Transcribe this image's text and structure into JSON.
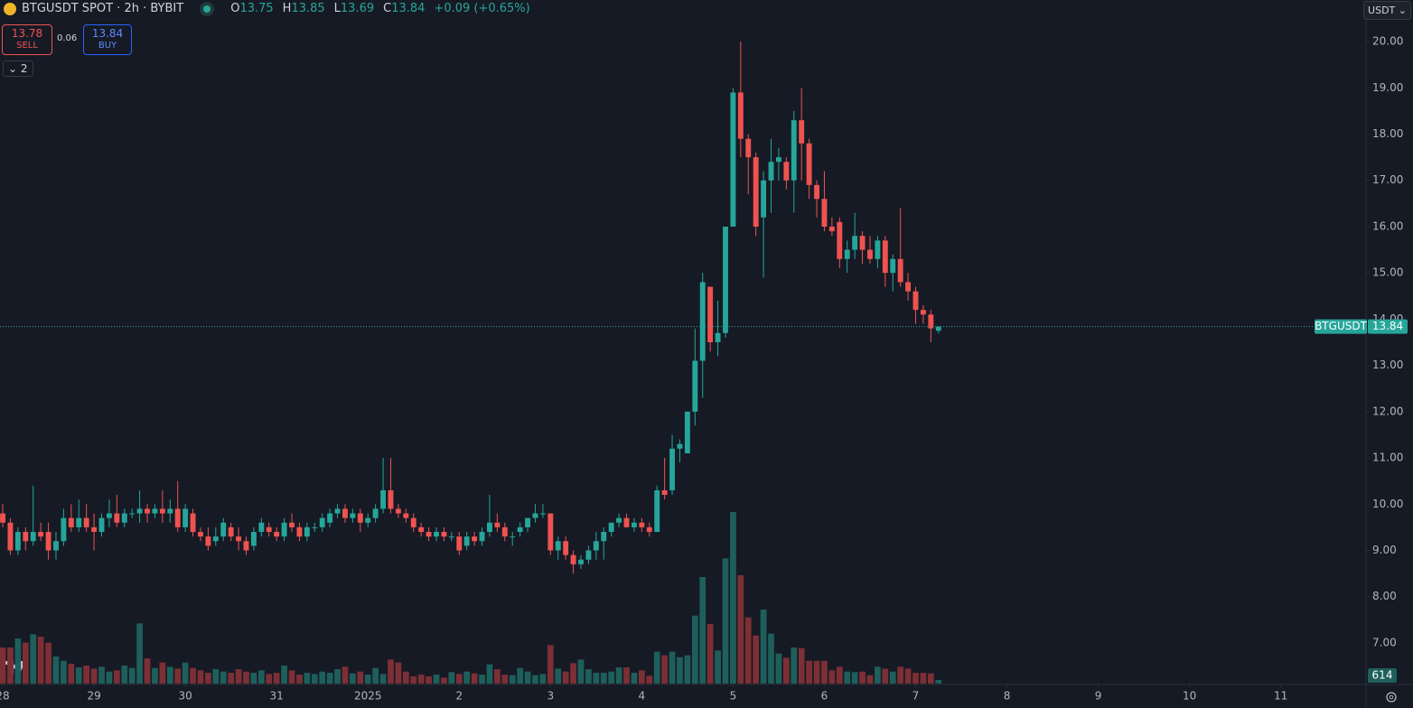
{
  "header": {
    "symbol": "BTGUSDT SPOT · 2h · BYBIT",
    "ohlc": [
      {
        "label": "O",
        "value": "13.75"
      },
      {
        "label": "H",
        "value": "13.85"
      },
      {
        "label": "L",
        "value": "13.69"
      },
      {
        "label": "C",
        "value": "13.84"
      }
    ],
    "change": "+0.09 (+0.65%)",
    "sell": {
      "price": "13.78",
      "label": "SELL"
    },
    "spread": "0.06",
    "buy": {
      "price": "13.84",
      "label": "BUY"
    },
    "indicators": "2",
    "currency": "USDT"
  },
  "chart_data": {
    "type": "candlestick",
    "up_color": "#26a69a",
    "down_color": "#ef5350",
    "up_volume_color": "#1e5f5b",
    "down_volume_color": "#7c2f35",
    "xlim": [
      -0.36,
      179.2
    ],
    "xticks": [
      {
        "value": 0,
        "label": "28"
      },
      {
        "value": 12,
        "label": "29"
      },
      {
        "value": 24,
        "label": "30"
      },
      {
        "value": 36,
        "label": "31"
      },
      {
        "value": 48,
        "label": "2025"
      },
      {
        "value": 60,
        "label": "2"
      },
      {
        "value": 72,
        "label": "3"
      },
      {
        "value": 84,
        "label": "4"
      },
      {
        "value": 96,
        "label": "5"
      },
      {
        "value": 108,
        "label": "6"
      },
      {
        "value": 120,
        "label": "7"
      },
      {
        "value": 132,
        "label": "8"
      },
      {
        "value": 144,
        "label": "9"
      },
      {
        "value": 156,
        "label": "10"
      },
      {
        "value": 168,
        "label": "11"
      }
    ],
    "ylim": [
      6.12,
      20.9
    ],
    "yticks": [
      {
        "value": 7,
        "label": "7.00"
      },
      {
        "value": 8,
        "label": "8.00"
      },
      {
        "value": 9,
        "label": "9.00"
      },
      {
        "value": 10,
        "label": "10.00"
      },
      {
        "value": 11,
        "label": "11.00"
      },
      {
        "value": 12,
        "label": "12.00"
      },
      {
        "value": 13,
        "label": "13.00"
      },
      {
        "value": 14,
        "label": "14.00"
      },
      {
        "value": 15,
        "label": "15.00"
      },
      {
        "value": 16,
        "label": "16.00"
      },
      {
        "value": 17,
        "label": "17.00"
      },
      {
        "value": 18,
        "label": "18.00"
      },
      {
        "value": 19,
        "label": "19.00"
      },
      {
        "value": 20,
        "label": "20.00"
      }
    ],
    "volume_lim": [
      0,
      33000
    ],
    "last_price": {
      "name": "BTGUSDT",
      "value": 13.84
    },
    "open": [
      9.8,
      9.6,
      9.0,
      9.4,
      9.2,
      9.4,
      9.4,
      9.0,
      9.2,
      9.7,
      9.5,
      9.7,
      9.5,
      9.4,
      9.7,
      9.8,
      9.6,
      9.8,
      9.8,
      9.9,
      9.8,
      9.9,
      9.8,
      9.9,
      9.5,
      9.8,
      9.4,
      9.3,
      9.2,
      9.3,
      9.5,
      9.3,
      9.2,
      9.1,
      9.4,
      9.5,
      9.4,
      9.3,
      9.6,
      9.5,
      9.3,
      9.5,
      9.5,
      9.6,
      9.8,
      9.9,
      9.7,
      9.8,
      9.6,
      9.7,
      9.9,
      10.3,
      9.9,
      9.8,
      9.7,
      9.5,
      9.4,
      9.3,
      9.4,
      9.3,
      9.3,
      9.1,
      9.3,
      9.2,
      9.4,
      9.6,
      9.5,
      9.3,
      9.4,
      9.5,
      9.7,
      9.8,
      9.8,
      9.0,
      9.2,
      8.9,
      8.7,
      8.8,
      9.0,
      9.2,
      9.4,
      9.6,
      9.7,
      9.5,
      9.6,
      9.5,
      9.4,
      10.3,
      10.3,
      11.2,
      11.1,
      12.0,
      13.1,
      14.7,
      13.5,
      13.7,
      16.0,
      18.9,
      17.9,
      17.5,
      16.2,
      17.0,
      17.4,
      17.4,
      17.0,
      18.3,
      17.8,
      16.9,
      16.6,
      16.0,
      16.1,
      15.3,
      15.5,
      15.8,
      15.5,
      15.3,
      15.7,
      15.0,
      15.3,
      14.8,
      14.6,
      14.2,
      14.1,
      13.75
    ],
    "high": [
      10.0,
      9.7,
      9.5,
      9.5,
      10.4,
      9.6,
      9.6,
      9.4,
      9.9,
      10.0,
      10.1,
      10.0,
      9.8,
      9.8,
      10.1,
      10.2,
      9.9,
      9.9,
      10.3,
      10.0,
      10.0,
      10.3,
      10.1,
      10.5,
      10.0,
      9.9,
      9.5,
      9.5,
      9.5,
      9.7,
      9.6,
      9.5,
      9.3,
      9.5,
      9.7,
      9.6,
      9.5,
      9.7,
      9.8,
      9.6,
      9.6,
      9.6,
      9.8,
      9.9,
      10.0,
      10.0,
      9.9,
      9.9,
      9.8,
      10.0,
      11.0,
      11.0,
      10.0,
      9.9,
      9.8,
      9.6,
      9.5,
      9.5,
      9.5,
      9.4,
      9.4,
      9.4,
      9.4,
      9.5,
      10.2,
      9.8,
      9.6,
      9.4,
      9.6,
      9.7,
      10.0,
      10.0,
      9.8,
      9.3,
      9.3,
      9.0,
      8.9,
      9.1,
      9.4,
      9.5,
      9.6,
      9.8,
      9.8,
      9.7,
      9.7,
      9.6,
      10.4,
      11.0,
      11.5,
      11.4,
      12.0,
      13.8,
      15.0,
      14.7,
      14.4,
      16.0,
      19.0,
      20.0,
      18.0,
      17.6,
      17.2,
      17.9,
      17.7,
      17.5,
      18.5,
      19.0,
      17.9,
      17.0,
      17.2,
      16.2,
      16.2,
      15.7,
      16.3,
      15.9,
      15.8,
      15.8,
      15.8,
      15.4,
      16.4,
      15.0,
      14.7,
      14.3,
      14.2,
      13.85
    ],
    "low": [
      9.5,
      8.9,
      8.9,
      9.0,
      9.1,
      9.2,
      8.8,
      8.8,
      9.1,
      9.4,
      9.4,
      9.4,
      9.0,
      9.3,
      9.5,
      9.5,
      9.5,
      9.7,
      9.6,
      9.6,
      9.7,
      9.6,
      9.6,
      9.4,
      9.4,
      9.3,
      9.2,
      9.0,
      9.1,
      9.2,
      9.2,
      9.0,
      8.9,
      9.0,
      9.3,
      9.3,
      9.2,
      9.2,
      9.4,
      9.2,
      9.2,
      9.4,
      9.4,
      9.5,
      9.7,
      9.6,
      9.6,
      9.4,
      9.5,
      9.6,
      9.8,
      9.8,
      9.7,
      9.6,
      9.4,
      9.3,
      9.2,
      9.2,
      9.2,
      9.2,
      8.9,
      9.0,
      9.1,
      9.1,
      9.3,
      9.4,
      9.2,
      9.1,
      9.3,
      9.4,
      9.6,
      9.7,
      8.9,
      8.8,
      8.8,
      8.5,
      8.6,
      8.7,
      8.8,
      8.8,
      9.3,
      9.5,
      9.5,
      9.4,
      9.4,
      9.3,
      9.4,
      10.1,
      10.2,
      10.9,
      11.1,
      11.7,
      12.3,
      13.3,
      13.2,
      13.6,
      16.0,
      17.5,
      16.7,
      15.8,
      14.9,
      16.3,
      17.0,
      16.8,
      16.3,
      17.0,
      16.6,
      16.2,
      15.9,
      15.8,
      15.1,
      15.0,
      15.3,
      15.2,
      15.2,
      15.1,
      14.7,
      14.6,
      14.7,
      14.4,
      13.9,
      13.9,
      13.5,
      13.69
    ],
    "close": [
      9.6,
      9.0,
      9.4,
      9.2,
      9.4,
      9.3,
      9.0,
      9.2,
      9.7,
      9.5,
      9.7,
      9.5,
      9.4,
      9.7,
      9.8,
      9.6,
      9.8,
      9.8,
      9.9,
      9.8,
      9.9,
      9.8,
      9.9,
      9.5,
      9.9,
      9.4,
      9.3,
      9.1,
      9.3,
      9.6,
      9.3,
      9.2,
      9.0,
      9.4,
      9.6,
      9.4,
      9.3,
      9.6,
      9.5,
      9.3,
      9.5,
      9.5,
      9.7,
      9.8,
      9.9,
      9.7,
      9.8,
      9.6,
      9.7,
      9.9,
      10.3,
      9.9,
      9.8,
      9.7,
      9.5,
      9.4,
      9.3,
      9.4,
      9.3,
      9.3,
      9.0,
      9.3,
      9.2,
      9.4,
      9.6,
      9.5,
      9.3,
      9.3,
      9.5,
      9.7,
      9.8,
      9.8,
      9.0,
      9.2,
      8.9,
      8.7,
      8.8,
      9.0,
      9.2,
      9.4,
      9.6,
      9.7,
      9.5,
      9.6,
      9.5,
      9.4,
      10.3,
      10.2,
      11.2,
      11.3,
      12.0,
      13.1,
      14.8,
      13.5,
      13.7,
      16.0,
      18.9,
      17.9,
      17.5,
      16.0,
      17.0,
      17.4,
      17.5,
      17.0,
      18.3,
      17.8,
      16.9,
      16.6,
      16.0,
      15.9,
      15.3,
      15.5,
      15.8,
      15.5,
      15.3,
      15.7,
      15.0,
      15.3,
      14.8,
      14.6,
      14.2,
      14.1,
      13.8,
      13.84
    ],
    "volume": [
      6000,
      6000,
      7500,
      6800,
      8200,
      7800,
      6800,
      4500,
      3800,
      3300,
      2700,
      3000,
      2500,
      2800,
      2000,
      2200,
      3000,
      2600,
      10000,
      4200,
      2600,
      3500,
      2800,
      2500,
      3500,
      2600,
      2200,
      1800,
      2400,
      2000,
      1800,
      2400,
      2000,
      1800,
      2200,
      1600,
      1800,
      3000,
      2200,
      1500,
      1800,
      1600,
      2000,
      1800,
      2400,
      2800,
      1700,
      2000,
      1500,
      2600,
      1600,
      4000,
      3500,
      2000,
      1200,
      1500,
      1200,
      1500,
      1000,
      1900,
      1600,
      2000,
      1700,
      1500,
      3200,
      2400,
      1500,
      1400,
      2600,
      2000,
      1400,
      1600,
      6400,
      2500,
      2000,
      3400,
      4000,
      2400,
      1800,
      1800,
      2000,
      2700,
      2700,
      1800,
      2200,
      1300,
      5300,
      4700,
      5300,
      4400,
      4700,
      11300,
      17700,
      9900,
      5500,
      20800,
      28500,
      18000,
      11000,
      8000,
      12300,
      8300,
      5000,
      4300,
      6000,
      5900,
      3800,
      3800,
      3800,
      2200,
      2800,
      2000,
      1900,
      2000,
      1400,
      2800,
      2500,
      2000,
      2800,
      2500,
      1800,
      1800,
      1700,
      614
    ]
  }
}
